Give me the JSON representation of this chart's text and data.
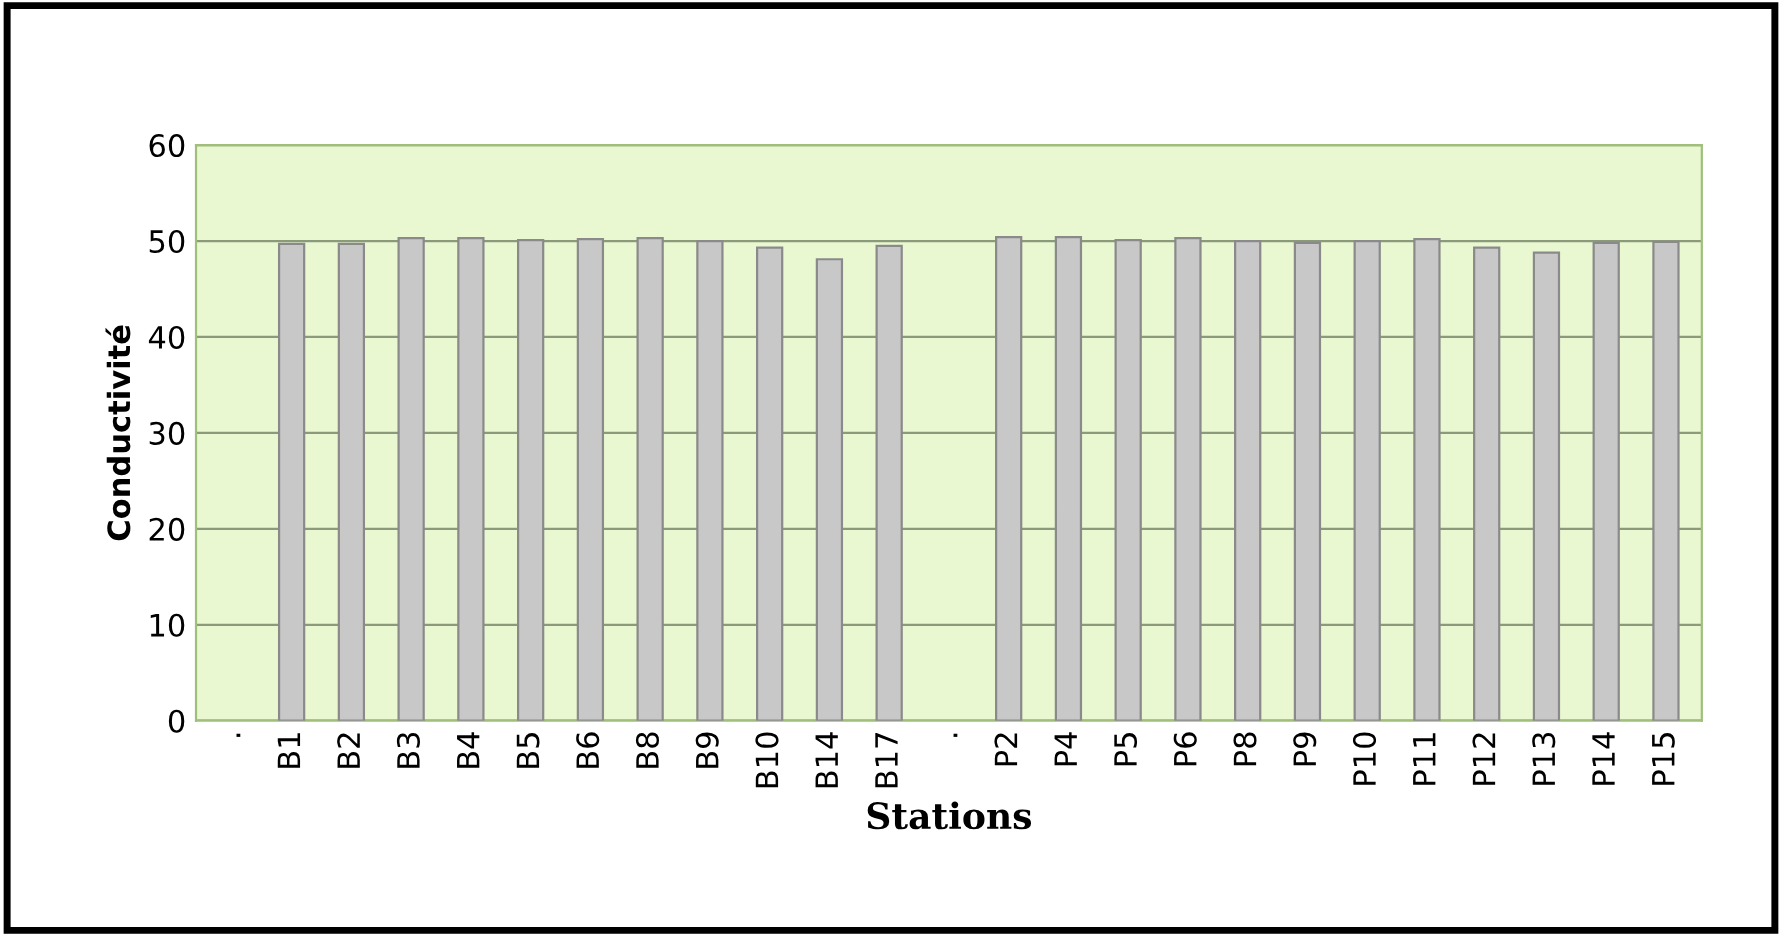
{
  "chart_data": {
    "type": "bar",
    "xlabel": "Stations",
    "ylabel": "Conductivité",
    "categories": [
      ".",
      "B1",
      "B2",
      "B3",
      "B4",
      "B5",
      "B6",
      "B8",
      "B9",
      "B10",
      "B14",
      "B17",
      ".",
      "P2",
      "P4",
      "P5",
      "P6",
      "P8",
      "P9",
      "P10",
      "P11",
      "P12",
      "P13",
      "P14",
      "P15"
    ],
    "values": [
      null,
      49.7,
      49.7,
      50.3,
      50.3,
      50.1,
      50.2,
      50.3,
      50.0,
      49.3,
      48.1,
      49.5,
      null,
      50.4,
      50.4,
      50.1,
      50.3,
      50.0,
      49.8,
      50.0,
      50.2,
      49.3,
      48.8,
      49.8,
      49.9
    ],
    "color": "#c8c8c8",
    "ylim": [
      0,
      60
    ],
    "yticks": [
      0,
      10,
      20,
      30,
      40,
      50,
      60
    ],
    "grid": "y",
    "legend": false
  }
}
